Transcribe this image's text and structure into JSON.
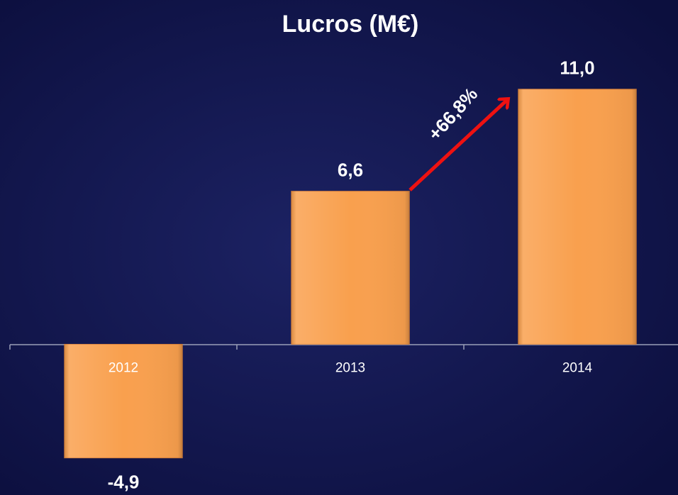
{
  "chart_data": {
    "type": "bar",
    "title": "Lucros (M€)",
    "categories": [
      "2012",
      "2013",
      "2014"
    ],
    "values": [
      -4.9,
      6.6,
      11.0
    ],
    "value_labels": [
      "-4,9",
      "6,6",
      "11,0"
    ],
    "annotation": "+66,8%",
    "color": "#f9a04e",
    "ylim": [
      -6.5,
      12.4
    ]
  }
}
